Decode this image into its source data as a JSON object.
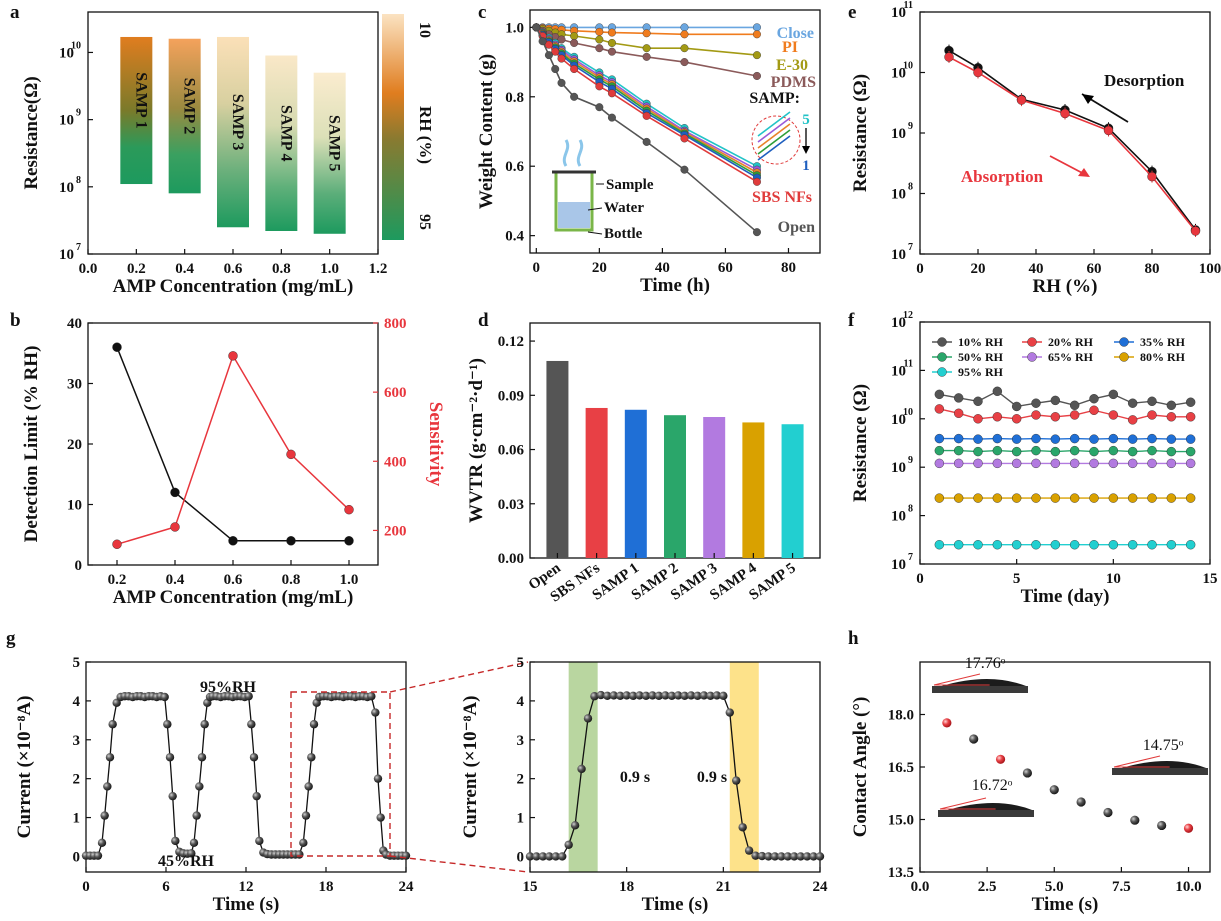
{
  "colors": {
    "black": "#222222",
    "red": "#e8363d",
    "grey": "#555555",
    "rh_top": "#f7d9a8",
    "rh_mid": "#e07d1f",
    "rh_bottom": "#1d9a5e",
    "close": "#6aa6e0",
    "pi": "#f07c1e",
    "e30": "#a39a14",
    "pdms": "#8b5a5a",
    "sbs": "#e03b3b",
    "samp": [
      "#1e5fbf",
      "#2e9e3a",
      "#e8832a",
      "#9a5ad8",
      "#22c3c7"
    ],
    "bars": [
      "#555555",
      "#e84045",
      "#1f6fd6",
      "#2aa66a",
      "#b27ae0",
      "#d9a100",
      "#22cfd0"
    ],
    "ls_10": "#555555",
    "ls_20": "#e84045",
    "ls_35": "#1f6fd6",
    "ls_50": "#2aa66a",
    "ls_65": "#b27ae0",
    "ls_80": "#d9a100",
    "ls_95": "#22cfd0",
    "band_green": "#b9d6a0",
    "band_yellow": "#fde28a",
    "bottle": "#7ab648",
    "water": "#a9c6e8",
    "steam": "#8bc6ea"
  },
  "chart_data": [
    {
      "panel": "a",
      "type": "bar",
      "xlabel": "AMP Concentration (mg/mL)",
      "ylabel": "Resistance(Ω)",
      "xlim": [
        0.0,
        1.2
      ],
      "ylim": [
        10000000,
        40000000000
      ],
      "yscale": "log",
      "xticks": [
        "0.0",
        "0.2",
        "0.4",
        "0.6",
        "0.8",
        "1.0",
        "1.2"
      ],
      "yticks": [
        "10",
        "10",
        "10",
        "10"
      ],
      "yexp": [
        "7",
        "8",
        "9",
        "10"
      ],
      "series": [
        {
          "name": "SAMP 1",
          "x": 0.2,
          "low": 110000000,
          "high": 17000000000
        },
        {
          "name": "SAMP 2",
          "x": 0.4,
          "low": 80000000,
          "high": 16000000000
        },
        {
          "name": "SAMP 3",
          "x": 0.6,
          "low": 25000000,
          "high": 17000000000
        },
        {
          "name": "SAMP 4",
          "x": 0.8,
          "low": 22000000,
          "high": 9000000000
        },
        {
          "name": "SAMP 5",
          "x": 1.0,
          "low": 20000000,
          "high": 5000000000
        }
      ],
      "colorbar": {
        "label": "RH (%)",
        "top": "10",
        "bottom": "95"
      }
    },
    {
      "panel": "b",
      "type": "line",
      "xlabel": "AMP Concentration (mg/mL)",
      "ylabel": "Detection Limit (% RH)",
      "y2label": "Sensitivity",
      "x": [
        0.2,
        0.4,
        0.6,
        0.8,
        1.0
      ],
      "xlim": [
        0.1,
        1.1
      ],
      "ylim": [
        0,
        40
      ],
      "y2lim": [
        100,
        800
      ],
      "xticks": [
        "0.2",
        "0.4",
        "0.6",
        "0.8",
        "1.0"
      ],
      "yticks": [
        "0",
        "10",
        "20",
        "30",
        "40"
      ],
      "y2ticks": [
        "200",
        "400",
        "600",
        "800"
      ],
      "series": [
        {
          "name": "Detection Limit",
          "values": [
            36,
            12,
            4,
            4,
            4
          ]
        },
        {
          "name": "Sensitivity",
          "values": [
            160,
            210,
            705,
            420,
            260
          ]
        }
      ]
    },
    {
      "panel": "c",
      "type": "line",
      "xlabel": "Time (h)",
      "ylabel": "Weight Content (g)",
      "xlim": [
        -2,
        90
      ],
      "ylim": [
        0.35,
        1.05
      ],
      "xticks": [
        "0",
        "20",
        "40",
        "60",
        "80"
      ],
      "yticks": [
        "0.4",
        "0.6",
        "0.8",
        "1.0"
      ],
      "x": [
        0,
        2,
        4,
        6,
        8,
        12,
        20,
        24,
        35,
        47,
        70
      ],
      "series": [
        {
          "name": "Close",
          "values": [
            1.0,
            1.0,
            1.0,
            1.0,
            1.0,
            1.0,
            1.0,
            1.0,
            1.0,
            1.0,
            1.0
          ]
        },
        {
          "name": "PI",
          "values": [
            1.0,
            0.998,
            0.996,
            0.995,
            0.993,
            0.99,
            0.987,
            0.985,
            0.983,
            0.98,
            0.98
          ]
        },
        {
          "name": "E-30",
          "values": [
            1.0,
            0.995,
            0.99,
            0.985,
            0.98,
            0.975,
            0.965,
            0.955,
            0.94,
            0.94,
            0.92
          ]
        },
        {
          "name": "PDMS",
          "values": [
            1.0,
            0.99,
            0.98,
            0.972,
            0.965,
            0.955,
            0.94,
            0.93,
            0.915,
            0.9,
            0.86
          ]
        },
        {
          "name": "SAMP 5",
          "values": [
            1.0,
            0.985,
            0.97,
            0.955,
            0.94,
            0.915,
            0.87,
            0.85,
            0.78,
            0.71,
            0.6
          ]
        },
        {
          "name": "SAMP 4",
          "values": [
            1.0,
            0.983,
            0.966,
            0.95,
            0.935,
            0.908,
            0.862,
            0.842,
            0.772,
            0.702,
            0.59
          ]
        },
        {
          "name": "SAMP 3",
          "values": [
            1.0,
            0.982,
            0.963,
            0.946,
            0.93,
            0.902,
            0.856,
            0.836,
            0.766,
            0.698,
            0.582
          ]
        },
        {
          "name": "SAMP 2",
          "values": [
            1.0,
            0.98,
            0.96,
            0.942,
            0.925,
            0.896,
            0.85,
            0.83,
            0.76,
            0.694,
            0.574
          ]
        },
        {
          "name": "SAMP 1",
          "values": [
            1.0,
            0.978,
            0.957,
            0.938,
            0.92,
            0.89,
            0.843,
            0.823,
            0.753,
            0.69,
            0.567
          ]
        },
        {
          "name": "SBS NFs",
          "values": [
            1.0,
            0.975,
            0.95,
            0.93,
            0.91,
            0.88,
            0.83,
            0.81,
            0.745,
            0.68,
            0.555
          ]
        },
        {
          "name": "Open",
          "values": [
            1.0,
            0.96,
            0.92,
            0.88,
            0.84,
            0.8,
            0.77,
            0.74,
            0.67,
            0.59,
            0.41
          ]
        }
      ],
      "legend_labels": {
        "close": "Close",
        "pi": "PI",
        "e30": "E-30",
        "pdms": "PDMS",
        "samp": "SAMP:",
        "samp5": "5",
        "samp1": "1",
        "sbs": "SBS NFs",
        "open": "Open"
      },
      "inset_labels": {
        "sample": "Sample",
        "water": "Water",
        "bottle": "Bottle"
      }
    },
    {
      "panel": "d",
      "type": "bar",
      "xlabel": "",
      "ylabel": "WVTR (g·cm⁻²·d⁻¹)",
      "ylim": [
        0,
        0.13
      ],
      "yticks": [
        "0.00",
        "0.03",
        "0.06",
        "0.09",
        "0.12"
      ],
      "categories": [
        "Open",
        "SBS NFs",
        "SAMP 1",
        "SAMP 2",
        "SAMP 3",
        "SAMP 4",
        "SAMP 5"
      ],
      "values": [
        0.109,
        0.083,
        0.082,
        0.079,
        0.078,
        0.075,
        0.074
      ]
    },
    {
      "panel": "e",
      "type": "line",
      "xlabel": "RH (%)",
      "ylabel": "Resistance (Ω)",
      "xlim": [
        0,
        100
      ],
      "ylim": [
        10000000,
        100000000000
      ],
      "yscale": "log",
      "xticks": [
        "0",
        "20",
        "40",
        "60",
        "80",
        "100"
      ],
      "yticks": [
        "10",
        "10",
        "10",
        "10",
        "10"
      ],
      "yexp": [
        "7",
        "8",
        "9",
        "10",
        "11"
      ],
      "x": [
        10,
        20,
        35,
        50,
        65,
        80,
        95
      ],
      "series": [
        {
          "name": "Desorption",
          "values": [
            23000000000,
            12000000000,
            3600000000,
            2400000000,
            1200000000,
            230000000,
            25000000
          ]
        },
        {
          "name": "Absorption",
          "values": [
            18000000000,
            10000000000,
            3500000000,
            2100000000,
            1100000000,
            190000000,
            24000000
          ]
        }
      ],
      "annotations": [
        "Desorption",
        "Absorption"
      ]
    },
    {
      "panel": "f",
      "type": "line",
      "xlabel": "Time (day)",
      "ylabel": "Resistance (Ω)",
      "xlim": [
        0,
        15
      ],
      "ylim": [
        10000000,
        1000000000000
      ],
      "yscale": "log",
      "xticks": [
        "0",
        "5",
        "10",
        "15"
      ],
      "yticks": [
        "10",
        "10",
        "10",
        "10",
        "10",
        "10"
      ],
      "yexp": [
        "7",
        "8",
        "9",
        "10",
        "11",
        "12"
      ],
      "x": [
        1,
        2,
        3,
        4,
        5,
        6,
        7,
        8,
        9,
        10,
        11,
        12,
        13,
        14
      ],
      "series": [
        {
          "name": "10% RH",
          "values": [
            32000000000,
            27000000000,
            23000000000,
            37000000000,
            18000000000,
            21000000000,
            24000000000,
            19000000000,
            26000000000,
            32000000000,
            21000000000,
            23000000000,
            19000000000,
            22000000000
          ]
        },
        {
          "name": "20% RH",
          "values": [
            16000000000,
            13000000000,
            10000000000,
            11000000000,
            10000000000,
            12000000000,
            11000000000,
            12000000000,
            15000000000,
            12000000000,
            9500000000,
            12000000000,
            11000000000,
            11000000000
          ]
        },
        {
          "name": "35% RH",
          "values": [
            3900000000,
            3900000000,
            3800000000,
            3900000000,
            3800000000,
            3900000000,
            3800000000,
            3900000000,
            3800000000,
            3900000000,
            3800000000,
            3900000000,
            3800000000,
            3800000000
          ]
        },
        {
          "name": "50% RH",
          "values": [
            2200000000,
            2200000000,
            2100000000,
            2200000000,
            2100000000,
            2200000000,
            2100000000,
            2200000000,
            2100000000,
            2200000000,
            2100000000,
            2200000000,
            2100000000,
            2100000000
          ]
        },
        {
          "name": "65% RH",
          "values": [
            1200000000,
            1200000000,
            1200000000,
            1200000000,
            1200000000,
            1200000000,
            1200000000,
            1200000000,
            1200000000,
            1200000000,
            1200000000,
            1200000000,
            1200000000,
            1200000000
          ]
        },
        {
          "name": "80% RH",
          "values": [
            230000000,
            230000000,
            230000000,
            230000000,
            230000000,
            230000000,
            230000000,
            230000000,
            230000000,
            230000000,
            230000000,
            230000000,
            230000000,
            230000000
          ]
        },
        {
          "name": "95% RH",
          "values": [
            25000000,
            25000000,
            25000000,
            25000000,
            25000000,
            25000000,
            25000000,
            25000000,
            25000000,
            25000000,
            25000000,
            25000000,
            25000000,
            25000000
          ]
        }
      ]
    },
    {
      "panel": "g",
      "type": "line",
      "xlabel": "Time (s)",
      "ylabel": "Current (×10⁻⁸A)",
      "xlim": [
        0,
        24
      ],
      "ylim": [
        -0.4,
        5
      ],
      "xticks": [
        "0",
        "6",
        "12",
        "18",
        "24"
      ],
      "yticks": [
        "0",
        "1",
        "2",
        "3",
        "4",
        "5"
      ],
      "x": [
        0,
        0.3,
        0.6,
        0.9,
        1.2,
        1.4,
        1.6,
        1.8,
        2.0,
        2.3,
        2.6,
        2.9,
        3.2,
        3.5,
        3.8,
        4.1,
        4.4,
        4.7,
        5.0,
        5.3,
        5.6,
        5.9,
        6.1,
        6.3,
        6.5,
        6.7,
        7.0,
        7.3,
        7.6,
        7.9,
        8.1,
        8.3,
        8.5,
        8.7,
        8.9,
        9.1,
        9.3,
        9.5,
        9.8,
        10.1,
        10.4,
        10.7,
        11.0,
        11.3,
        11.6,
        11.9,
        12.2,
        12.4,
        12.6,
        12.8,
        13.0,
        13.3,
        13.6,
        13.9,
        14.2,
        14.5,
        14.8,
        15.1,
        15.4,
        15.7,
        16.0,
        16.3,
        16.5,
        16.7,
        16.9,
        17.1,
        17.3,
        17.5,
        17.8,
        18.1,
        18.4,
        18.7,
        19.0,
        19.3,
        19.6,
        19.9,
        20.2,
        20.5,
        20.8,
        21.1,
        21.4,
        21.7,
        21.9,
        22.1,
        22.3,
        22.5,
        22.8,
        23.1,
        23.4,
        23.7,
        24.0
      ],
      "values": [
        0.02,
        0.02,
        0.02,
        0.02,
        0.35,
        1.05,
        1.8,
        2.55,
        3.4,
        3.95,
        4.1,
        4.12,
        4.12,
        4.1,
        4.12,
        4.12,
        4.1,
        4.12,
        4.12,
        4.1,
        4.12,
        4.1,
        3.4,
        2.55,
        1.55,
        0.4,
        0.12,
        0.08,
        0.07,
        0.08,
        0.35,
        1.05,
        1.8,
        2.55,
        3.4,
        3.95,
        4.1,
        4.12,
        4.12,
        4.1,
        4.12,
        4.12,
        4.1,
        4.12,
        4.12,
        4.1,
        4.12,
        3.4,
        2.55,
        1.55,
        0.4,
        0.1,
        0.06,
        0.05,
        0.05,
        0.05,
        0.05,
        0.05,
        0.05,
        0.05,
        0.05,
        0.35,
        1.05,
        1.8,
        2.55,
        3.4,
        3.95,
        4.1,
        4.12,
        4.12,
        4.1,
        4.12,
        4.12,
        4.1,
        4.12,
        4.12,
        4.1,
        4.12,
        4.12,
        4.1,
        4.12,
        3.7,
        2.0,
        1.0,
        0.15,
        0.05,
        0.02,
        0.02,
        0.02,
        0.02,
        0.02
      ],
      "annotations": [
        "95%RH",
        "45%RH"
      ]
    },
    {
      "panel": "g-zoom",
      "type": "line",
      "xlabel": "Time (s)",
      "ylabel": "Current (×10⁻⁸A)",
      "xlim": [
        15,
        24
      ],
      "ylim": [
        -0.4,
        5
      ],
      "xticks": [
        "15",
        "18",
        "21",
        "24"
      ],
      "yticks": [
        "0",
        "1",
        "2",
        "3",
        "4",
        "5"
      ],
      "x": [
        15.0,
        15.2,
        15.4,
        15.6,
        15.8,
        16.0,
        16.2,
        16.4,
        16.6,
        16.8,
        17.0,
        17.2,
        17.4,
        17.6,
        17.8,
        18.0,
        18.2,
        18.4,
        18.6,
        18.8,
        19.0,
        19.2,
        19.4,
        19.6,
        19.8,
        20.0,
        20.2,
        20.4,
        20.6,
        20.8,
        21.0,
        21.2,
        21.4,
        21.6,
        21.8,
        22.0,
        22.2,
        22.4,
        22.6,
        22.8,
        23.0,
        23.2,
        23.4,
        23.6,
        23.8,
        24.0
      ],
      "values": [
        0.0,
        0.0,
        0.0,
        0.0,
        0.0,
        0.0,
        0.3,
        0.8,
        2.25,
        3.55,
        4.12,
        4.15,
        4.13,
        4.14,
        4.13,
        4.14,
        4.13,
        4.14,
        4.13,
        4.14,
        4.13,
        4.14,
        4.13,
        4.14,
        4.13,
        4.14,
        4.13,
        4.14,
        4.13,
        4.14,
        4.13,
        3.7,
        1.95,
        0.75,
        0.15,
        0.02,
        0.01,
        0.0,
        0.0,
        0.0,
        0.0,
        0.0,
        0.0,
        0.0,
        0.0,
        0.0
      ],
      "bands": [
        [
          16.2,
          17.1
        ],
        [
          21.2,
          22.1
        ]
      ],
      "annotations": [
        "0.9 s",
        "0.9 s"
      ]
    },
    {
      "panel": "h",
      "type": "scatter",
      "xlabel": "Time (s)",
      "ylabel": "Contact Angle (°)",
      "xlim": [
        0,
        10.8
      ],
      "ylim": [
        13.5,
        19.5
      ],
      "xticks": [
        "0.0",
        "2.5",
        "5.0",
        "7.5",
        "10.0"
      ],
      "yticks": [
        "13.5",
        "15.0",
        "16.5",
        "18.0"
      ],
      "x": [
        1,
        2,
        3,
        4,
        5,
        6,
        7,
        8,
        9,
        10
      ],
      "values": [
        17.76,
        17.3,
        16.72,
        16.33,
        15.85,
        15.5,
        15.2,
        14.98,
        14.83,
        14.75
      ],
      "highlight": [
        0,
        2,
        9
      ],
      "annotations": [
        "17.76ᵒ",
        "16.72ᵒ",
        "14.75ᵒ"
      ]
    }
  ],
  "panel_labels": [
    "a",
    "b",
    "c",
    "d",
    "e",
    "f",
    "g",
    "h"
  ]
}
